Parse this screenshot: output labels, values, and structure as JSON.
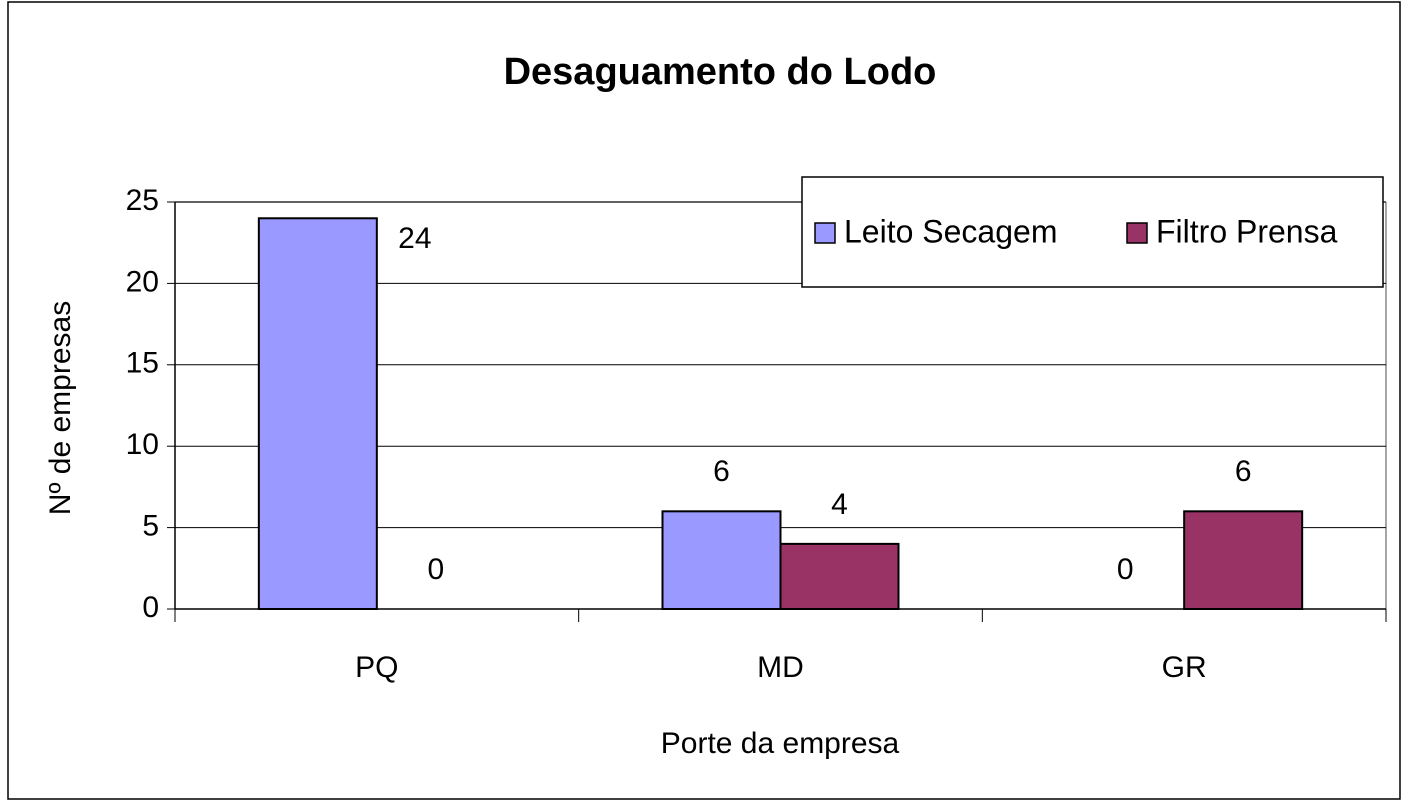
{
  "chart_data": {
    "type": "bar",
    "title": "Desaguamento do Lodo",
    "x_label": "Porte da empresa",
    "y_label": "Nº de empresas",
    "categories": [
      "PQ",
      "MD",
      "GR"
    ],
    "series": [
      {
        "name": "Leito Secagem",
        "color": "#9999ff",
        "values": [
          24,
          6,
          0
        ]
      },
      {
        "name": "Filtro Prensa",
        "color": "#993366",
        "values": [
          0,
          4,
          6
        ]
      }
    ],
    "ylim": [
      0,
      25
    ],
    "yticks": [
      0,
      5,
      10,
      15,
      20,
      25
    ],
    "grid": true,
    "legend": "top-right"
  }
}
